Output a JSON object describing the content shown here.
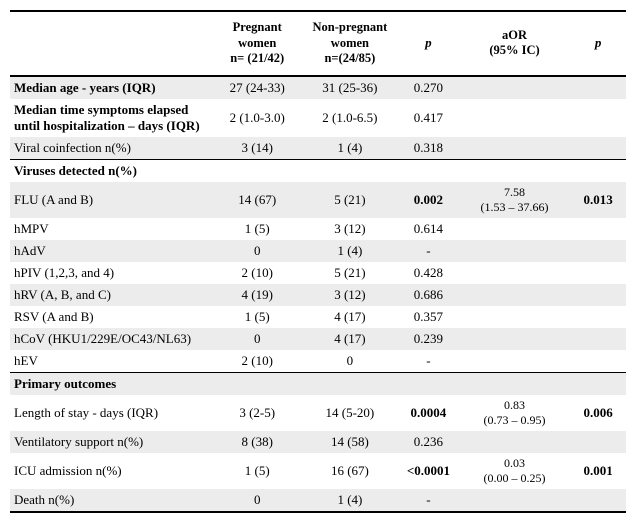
{
  "headers": {
    "rowlabel": "",
    "pregnant_l1": "Pregnant",
    "pregnant_l2": "women",
    "pregnant_l3": "n= (21/42)",
    "nonpregnant_l1": "Non-pregnant",
    "nonpregnant_l2": "women",
    "nonpregnant_l3": "n=(24/85)",
    "p1": "p",
    "aor_l1": "aOR",
    "aor_l2": "(95% IC)",
    "p2": "p"
  },
  "rows": [
    {
      "id": "age",
      "shade": true,
      "bold": true,
      "label": "Median age - years (IQR)",
      "preg": "27 (24-33)",
      "non": "31 (25-36)",
      "p1": "0.270",
      "aor": "",
      "p2": ""
    },
    {
      "id": "symp",
      "shade": false,
      "bold": true,
      "label": "Median time symptoms elapsed until hospitalization – days (IQR)",
      "preg": "2 (1.0-3.0)",
      "non": "2 (1.0-6.5)",
      "p1": "0.417",
      "aor": "",
      "p2": ""
    },
    {
      "id": "coinf",
      "shade": true,
      "bold": false,
      "label": "Viral coinfection n(%)",
      "preg": "3 (14)",
      "non": "1 (4)",
      "p1": "0.318",
      "aor": "",
      "p2": ""
    },
    {
      "id": "vdet",
      "shade": false,
      "bold": true,
      "section": "above",
      "label": "Viruses detected n(%)",
      "preg": "",
      "non": "",
      "p1": "",
      "aor": "",
      "p2": ""
    },
    {
      "id": "flu",
      "shade": true,
      "bold": false,
      "label": "FLU (A and B)",
      "preg": "14 (67)",
      "non": "5 (21)",
      "p1": "0.002",
      "p1_bold": true,
      "aor_l1": "7.58",
      "aor_l2": "(1.53 – 37.66)",
      "p2": "0.013",
      "p2_bold": true
    },
    {
      "id": "hmpv",
      "shade": false,
      "bold": false,
      "label": "hMPV",
      "preg": "1 (5)",
      "non": "3 (12)",
      "p1": "0.614",
      "aor": "",
      "p2": ""
    },
    {
      "id": "hadv",
      "shade": true,
      "bold": false,
      "label": "hAdV",
      "preg": "0",
      "non": "1 (4)",
      "p1": "-",
      "aor": "",
      "p2": ""
    },
    {
      "id": "hpiv",
      "shade": false,
      "bold": false,
      "label": "hPIV (1,2,3, and 4)",
      "preg": "2 (10)",
      "non": "5 (21)",
      "p1": "0.428",
      "aor": "",
      "p2": ""
    },
    {
      "id": "hrv",
      "shade": true,
      "bold": false,
      "label": "hRV (A, B, and C)",
      "preg": "4 (19)",
      "non": "3 (12)",
      "p1": "0.686",
      "aor": "",
      "p2": ""
    },
    {
      "id": "rsv",
      "shade": false,
      "bold": false,
      "label": "RSV (A and B)",
      "preg": "1 (5)",
      "non": "4 (17)",
      "p1": "0.357",
      "aor": "",
      "p2": ""
    },
    {
      "id": "hcov",
      "shade": true,
      "bold": false,
      "label": "hCoV (HKU1/229E/OC43/NL63)",
      "preg": "0",
      "non": "4 (17)",
      "p1": "0.239",
      "aor": "",
      "p2": ""
    },
    {
      "id": "hev",
      "shade": false,
      "bold": false,
      "label": "hEV",
      "preg": "2 (10)",
      "non": "0",
      "p1": "-",
      "aor": "",
      "p2": ""
    },
    {
      "id": "pout",
      "shade": true,
      "bold": true,
      "section": "above",
      "label": "Primary outcomes",
      "preg": "",
      "non": "",
      "p1": "",
      "aor": "",
      "p2": ""
    },
    {
      "id": "los",
      "shade": false,
      "bold": false,
      "label": "Length of stay - days (IQR)",
      "preg": "3 (2-5)",
      "non": "14 (5-20)",
      "p1": "0.0004",
      "p1_bold": true,
      "aor_l1": "0.83",
      "aor_l2": "(0.73 – 0.95)",
      "p2": "0.006",
      "p2_bold": true
    },
    {
      "id": "vent",
      "shade": true,
      "bold": false,
      "label": "Ventilatory support n(%)",
      "preg": "8 (38)",
      "non": "14 (58)",
      "p1": "0.236",
      "aor": "",
      "p2": ""
    },
    {
      "id": "icu",
      "shade": false,
      "bold": false,
      "label": "ICU admission n(%)",
      "preg": "1 (5)",
      "non": "16 (67)",
      "p1": "<0.0001",
      "p1_bold": true,
      "aor_l1": "0.03",
      "aor_l2": "(0.00 – 0.25)",
      "p2": "0.001",
      "p2_bold": true
    },
    {
      "id": "death",
      "shade": true,
      "bold": false,
      "label": "Death n(%)",
      "preg": "0",
      "non": "1 (4)",
      "p1": "-",
      "aor": "",
      "p2": ""
    }
  ],
  "style": {
    "font_family": "Times New Roman",
    "base_fontsize_pt": 10,
    "header_fontsize_pt": 10,
    "shade_color": "#ececec",
    "rule_color": "#000000",
    "background_color": "#ffffff"
  }
}
